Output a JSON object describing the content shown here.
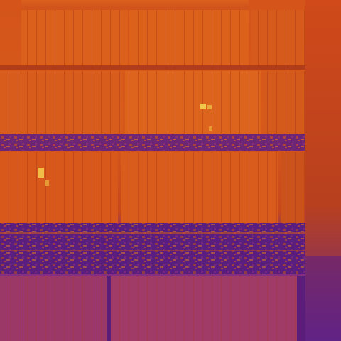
{
  "image": {
    "description_kind": "thermal-infrared-aerial-photo",
    "palette": {
      "hot": "#f2c64a",
      "warm": "#e0621a",
      "mid": "#c8481c",
      "cool": "#7a2a8a",
      "cold": "#4a1a7a",
      "edge": "#b03a1a"
    }
  }
}
